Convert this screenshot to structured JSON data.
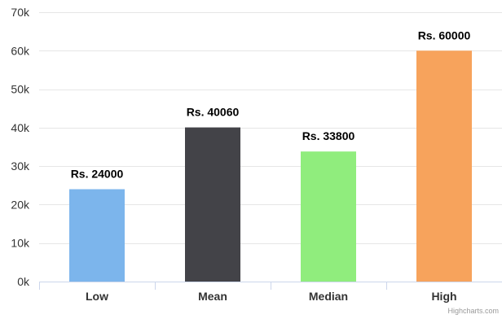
{
  "chart_data": {
    "type": "bar",
    "categories": [
      "Low",
      "Mean",
      "Median",
      "High"
    ],
    "values": [
      24000,
      40060,
      33800,
      60000
    ],
    "data_labels": [
      "Rs. 24000",
      "Rs. 40060",
      "Rs. 33800",
      "Rs. 60000"
    ],
    "colors": [
      "#7cb5ec",
      "#434348",
      "#90ed7d",
      "#f7a35c"
    ],
    "yticks": [
      0,
      10000,
      20000,
      30000,
      40000,
      50000,
      60000,
      70000
    ],
    "ytick_labels": [
      "0k",
      "10k",
      "20k",
      "30k",
      "40k",
      "50k",
      "60k",
      "70k"
    ],
    "ylim": [
      0,
      70000
    ],
    "grid": true,
    "legend": false,
    "title": "",
    "xlabel": "",
    "ylabel": ""
  },
  "credits": "Highcharts.com",
  "colors": {
    "grid": "#e6e6e6",
    "axis": "#ccd6eb",
    "text": "#333333"
  }
}
